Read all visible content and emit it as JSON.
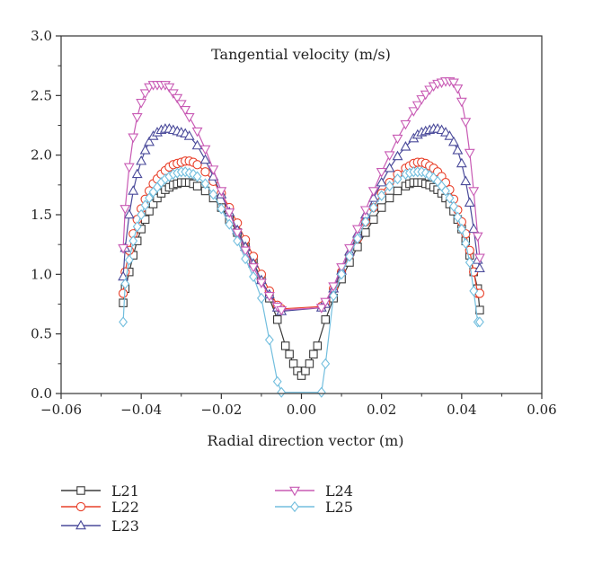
{
  "chart_data": {
    "type": "line",
    "title": "Tangential velocity (m/s)",
    "xlabel": "Radial direction vector (m)",
    "ylabel": "",
    "xlim": [
      -0.06,
      0.06
    ],
    "ylim": [
      0.0,
      3.0
    ],
    "xticks": [
      "−0.06",
      "−0.04",
      "−0.02",
      "0.00",
      "0.02",
      "0.04",
      "0.06"
    ],
    "xtick_values": [
      -0.06,
      -0.04,
      -0.02,
      0.0,
      0.02,
      0.04,
      0.06
    ],
    "yticks": [
      "0.0",
      "0.5",
      "1.0",
      "1.5",
      "2.0",
      "2.5",
      "3.0"
    ],
    "ytick_values": [
      0.0,
      0.5,
      1.0,
      1.5,
      2.0,
      2.5,
      3.0
    ],
    "grid": false,
    "legend_position": "bottom",
    "series": [
      {
        "name": "L21",
        "color": "#3a3a3a",
        "marker": "square",
        "x": [
          -0.0445,
          -0.044,
          -0.043,
          -0.042,
          -0.041,
          -0.04,
          -0.039,
          -0.038,
          -0.037,
          -0.036,
          -0.035,
          -0.034,
          -0.033,
          -0.032,
          -0.031,
          -0.03,
          -0.029,
          -0.028,
          -0.027,
          -0.026,
          -0.024,
          -0.022,
          -0.02,
          -0.018,
          -0.016,
          -0.014,
          -0.012,
          -0.01,
          -0.008,
          -0.006,
          -0.004,
          -0.003,
          -0.002,
          -0.001,
          0.0,
          0.001,
          0.002,
          0.003,
          0.004,
          0.006,
          0.008,
          0.01,
          0.012,
          0.014,
          0.016,
          0.018,
          0.02,
          0.022,
          0.024,
          0.026,
          0.027,
          0.028,
          0.029,
          0.03,
          0.031,
          0.032,
          0.033,
          0.034,
          0.035,
          0.036,
          0.037,
          0.038,
          0.039,
          0.04,
          0.041,
          0.042,
          0.043,
          0.044,
          0.0445
        ],
        "y": [
          0.76,
          0.88,
          1.02,
          1.16,
          1.28,
          1.38,
          1.46,
          1.53,
          1.59,
          1.64,
          1.68,
          1.71,
          1.73,
          1.75,
          1.76,
          1.77,
          1.77,
          1.77,
          1.76,
          1.74,
          1.7,
          1.64,
          1.56,
          1.46,
          1.35,
          1.23,
          1.1,
          0.96,
          0.8,
          0.62,
          0.4,
          0.33,
          0.25,
          0.19,
          0.15,
          0.19,
          0.25,
          0.33,
          0.4,
          0.62,
          0.8,
          0.96,
          1.1,
          1.23,
          1.35,
          1.46,
          1.56,
          1.64,
          1.7,
          1.74,
          1.76,
          1.77,
          1.77,
          1.77,
          1.76,
          1.75,
          1.73,
          1.71,
          1.68,
          1.64,
          1.59,
          1.53,
          1.46,
          1.38,
          1.28,
          1.16,
          1.02,
          0.88,
          0.7
        ]
      },
      {
        "name": "L22",
        "color": "#e8402a",
        "marker": "circle",
        "x": [
          -0.0445,
          -0.044,
          -0.043,
          -0.042,
          -0.041,
          -0.04,
          -0.039,
          -0.038,
          -0.037,
          -0.036,
          -0.035,
          -0.034,
          -0.033,
          -0.032,
          -0.031,
          -0.03,
          -0.029,
          -0.028,
          -0.027,
          -0.026,
          -0.024,
          -0.022,
          -0.02,
          -0.018,
          -0.016,
          -0.014,
          -0.012,
          -0.01,
          -0.008,
          -0.006,
          -0.005,
          0.005,
          0.006,
          0.008,
          0.01,
          0.012,
          0.014,
          0.016,
          0.018,
          0.02,
          0.022,
          0.024,
          0.026,
          0.027,
          0.028,
          0.029,
          0.03,
          0.031,
          0.032,
          0.033,
          0.034,
          0.035,
          0.036,
          0.037,
          0.038,
          0.039,
          0.04,
          0.041,
          0.042,
          0.043,
          0.044,
          0.0445
        ],
        "y": [
          0.84,
          1.02,
          1.2,
          1.34,
          1.46,
          1.55,
          1.63,
          1.7,
          1.76,
          1.8,
          1.84,
          1.87,
          1.9,
          1.92,
          1.93,
          1.94,
          1.95,
          1.95,
          1.94,
          1.92,
          1.86,
          1.78,
          1.68,
          1.56,
          1.43,
          1.29,
          1.15,
          1.0,
          0.86,
          0.74,
          0.71,
          0.73,
          0.76,
          0.88,
          1.02,
          1.16,
          1.3,
          1.44,
          1.56,
          1.68,
          1.77,
          1.84,
          1.89,
          1.91,
          1.93,
          1.94,
          1.94,
          1.93,
          1.91,
          1.89,
          1.86,
          1.82,
          1.77,
          1.71,
          1.63,
          1.54,
          1.44,
          1.34,
          1.2,
          1.02,
          0.84,
          0.84
        ]
      },
      {
        "name": "L23",
        "color": "#4a4a9a",
        "marker": "triangle-up",
        "x": [
          -0.0445,
          -0.044,
          -0.043,
          -0.042,
          -0.041,
          -0.04,
          -0.039,
          -0.038,
          -0.037,
          -0.036,
          -0.035,
          -0.034,
          -0.033,
          -0.032,
          -0.031,
          -0.03,
          -0.029,
          -0.028,
          -0.026,
          -0.024,
          -0.022,
          -0.02,
          -0.018,
          -0.016,
          -0.014,
          -0.012,
          -0.01,
          -0.008,
          -0.006,
          -0.005,
          0.005,
          0.006,
          0.008,
          0.01,
          0.012,
          0.014,
          0.016,
          0.018,
          0.02,
          0.022,
          0.024,
          0.026,
          0.028,
          0.029,
          0.03,
          0.031,
          0.032,
          0.033,
          0.034,
          0.035,
          0.036,
          0.037,
          0.038,
          0.039,
          0.04,
          0.041,
          0.042,
          0.043,
          0.044,
          0.0445
        ],
        "y": [
          0.98,
          1.22,
          1.5,
          1.7,
          1.84,
          1.95,
          2.04,
          2.11,
          2.16,
          2.19,
          2.21,
          2.22,
          2.22,
          2.21,
          2.2,
          2.19,
          2.18,
          2.16,
          2.08,
          1.96,
          1.82,
          1.67,
          1.52,
          1.37,
          1.23,
          1.09,
          0.95,
          0.83,
          0.72,
          0.69,
          0.72,
          0.75,
          0.88,
          1.03,
          1.19,
          1.34,
          1.5,
          1.64,
          1.77,
          1.89,
          1.99,
          2.07,
          2.14,
          2.17,
          2.19,
          2.2,
          2.21,
          2.22,
          2.22,
          2.21,
          2.19,
          2.16,
          2.11,
          2.04,
          1.93,
          1.78,
          1.6,
          1.38,
          1.12,
          1.05
        ]
      },
      {
        "name": "L24",
        "color": "#c85ab4",
        "marker": "triangle-down",
        "x": [
          -0.0445,
          -0.044,
          -0.043,
          -0.042,
          -0.041,
          -0.04,
          -0.039,
          -0.038,
          -0.037,
          -0.036,
          -0.035,
          -0.034,
          -0.033,
          -0.032,
          -0.031,
          -0.03,
          -0.029,
          -0.028,
          -0.026,
          -0.024,
          -0.022,
          -0.02,
          -0.018,
          -0.016,
          -0.014,
          -0.012,
          -0.01,
          -0.008,
          -0.006,
          -0.005,
          0.005,
          0.006,
          0.008,
          0.01,
          0.012,
          0.014,
          0.016,
          0.018,
          0.02,
          0.022,
          0.024,
          0.026,
          0.028,
          0.029,
          0.03,
          0.031,
          0.032,
          0.033,
          0.034,
          0.035,
          0.036,
          0.037,
          0.038,
          0.039,
          0.04,
          0.041,
          0.042,
          0.043,
          0.044,
          0.0445
        ],
        "y": [
          1.22,
          1.55,
          1.9,
          2.15,
          2.32,
          2.44,
          2.52,
          2.57,
          2.59,
          2.59,
          2.59,
          2.59,
          2.57,
          2.52,
          2.48,
          2.43,
          2.38,
          2.32,
          2.2,
          2.05,
          1.88,
          1.7,
          1.52,
          1.35,
          1.2,
          1.06,
          0.93,
          0.82,
          0.73,
          0.7,
          0.72,
          0.77,
          0.9,
          1.06,
          1.22,
          1.38,
          1.54,
          1.7,
          1.86,
          2.0,
          2.14,
          2.26,
          2.37,
          2.42,
          2.47,
          2.51,
          2.55,
          2.58,
          2.6,
          2.61,
          2.62,
          2.62,
          2.61,
          2.56,
          2.45,
          2.28,
          2.02,
          1.7,
          1.32,
          1.14
        ]
      },
      {
        "name": "L25",
        "color": "#72bede",
        "marker": "diamond",
        "x": [
          -0.0445,
          -0.044,
          -0.043,
          -0.042,
          -0.041,
          -0.04,
          -0.039,
          -0.038,
          -0.037,
          -0.036,
          -0.035,
          -0.034,
          -0.033,
          -0.032,
          -0.031,
          -0.03,
          -0.029,
          -0.028,
          -0.027,
          -0.026,
          -0.024,
          -0.022,
          -0.02,
          -0.018,
          -0.016,
          -0.014,
          -0.012,
          -0.01,
          -0.008,
          -0.006,
          -0.005,
          0.005,
          0.006,
          0.008,
          0.01,
          0.012,
          0.014,
          0.016,
          0.018,
          0.02,
          0.022,
          0.024,
          0.026,
          0.027,
          0.028,
          0.029,
          0.03,
          0.031,
          0.032,
          0.033,
          0.034,
          0.035,
          0.036,
          0.037,
          0.038,
          0.039,
          0.04,
          0.041,
          0.042,
          0.043,
          0.044,
          0.0445
        ],
        "y": [
          0.6,
          0.92,
          1.12,
          1.28,
          1.4,
          1.5,
          1.58,
          1.64,
          1.69,
          1.73,
          1.77,
          1.8,
          1.82,
          1.84,
          1.85,
          1.86,
          1.86,
          1.85,
          1.84,
          1.82,
          1.76,
          1.67,
          1.55,
          1.42,
          1.28,
          1.13,
          0.98,
          0.8,
          0.45,
          0.1,
          0.01,
          0.01,
          0.25,
          0.82,
          1.0,
          1.15,
          1.3,
          1.44,
          1.56,
          1.66,
          1.74,
          1.8,
          1.84,
          1.85,
          1.86,
          1.86,
          1.86,
          1.85,
          1.83,
          1.81,
          1.78,
          1.74,
          1.7,
          1.64,
          1.57,
          1.48,
          1.38,
          1.26,
          1.1,
          0.86,
          0.6,
          0.6
        ]
      }
    ]
  }
}
